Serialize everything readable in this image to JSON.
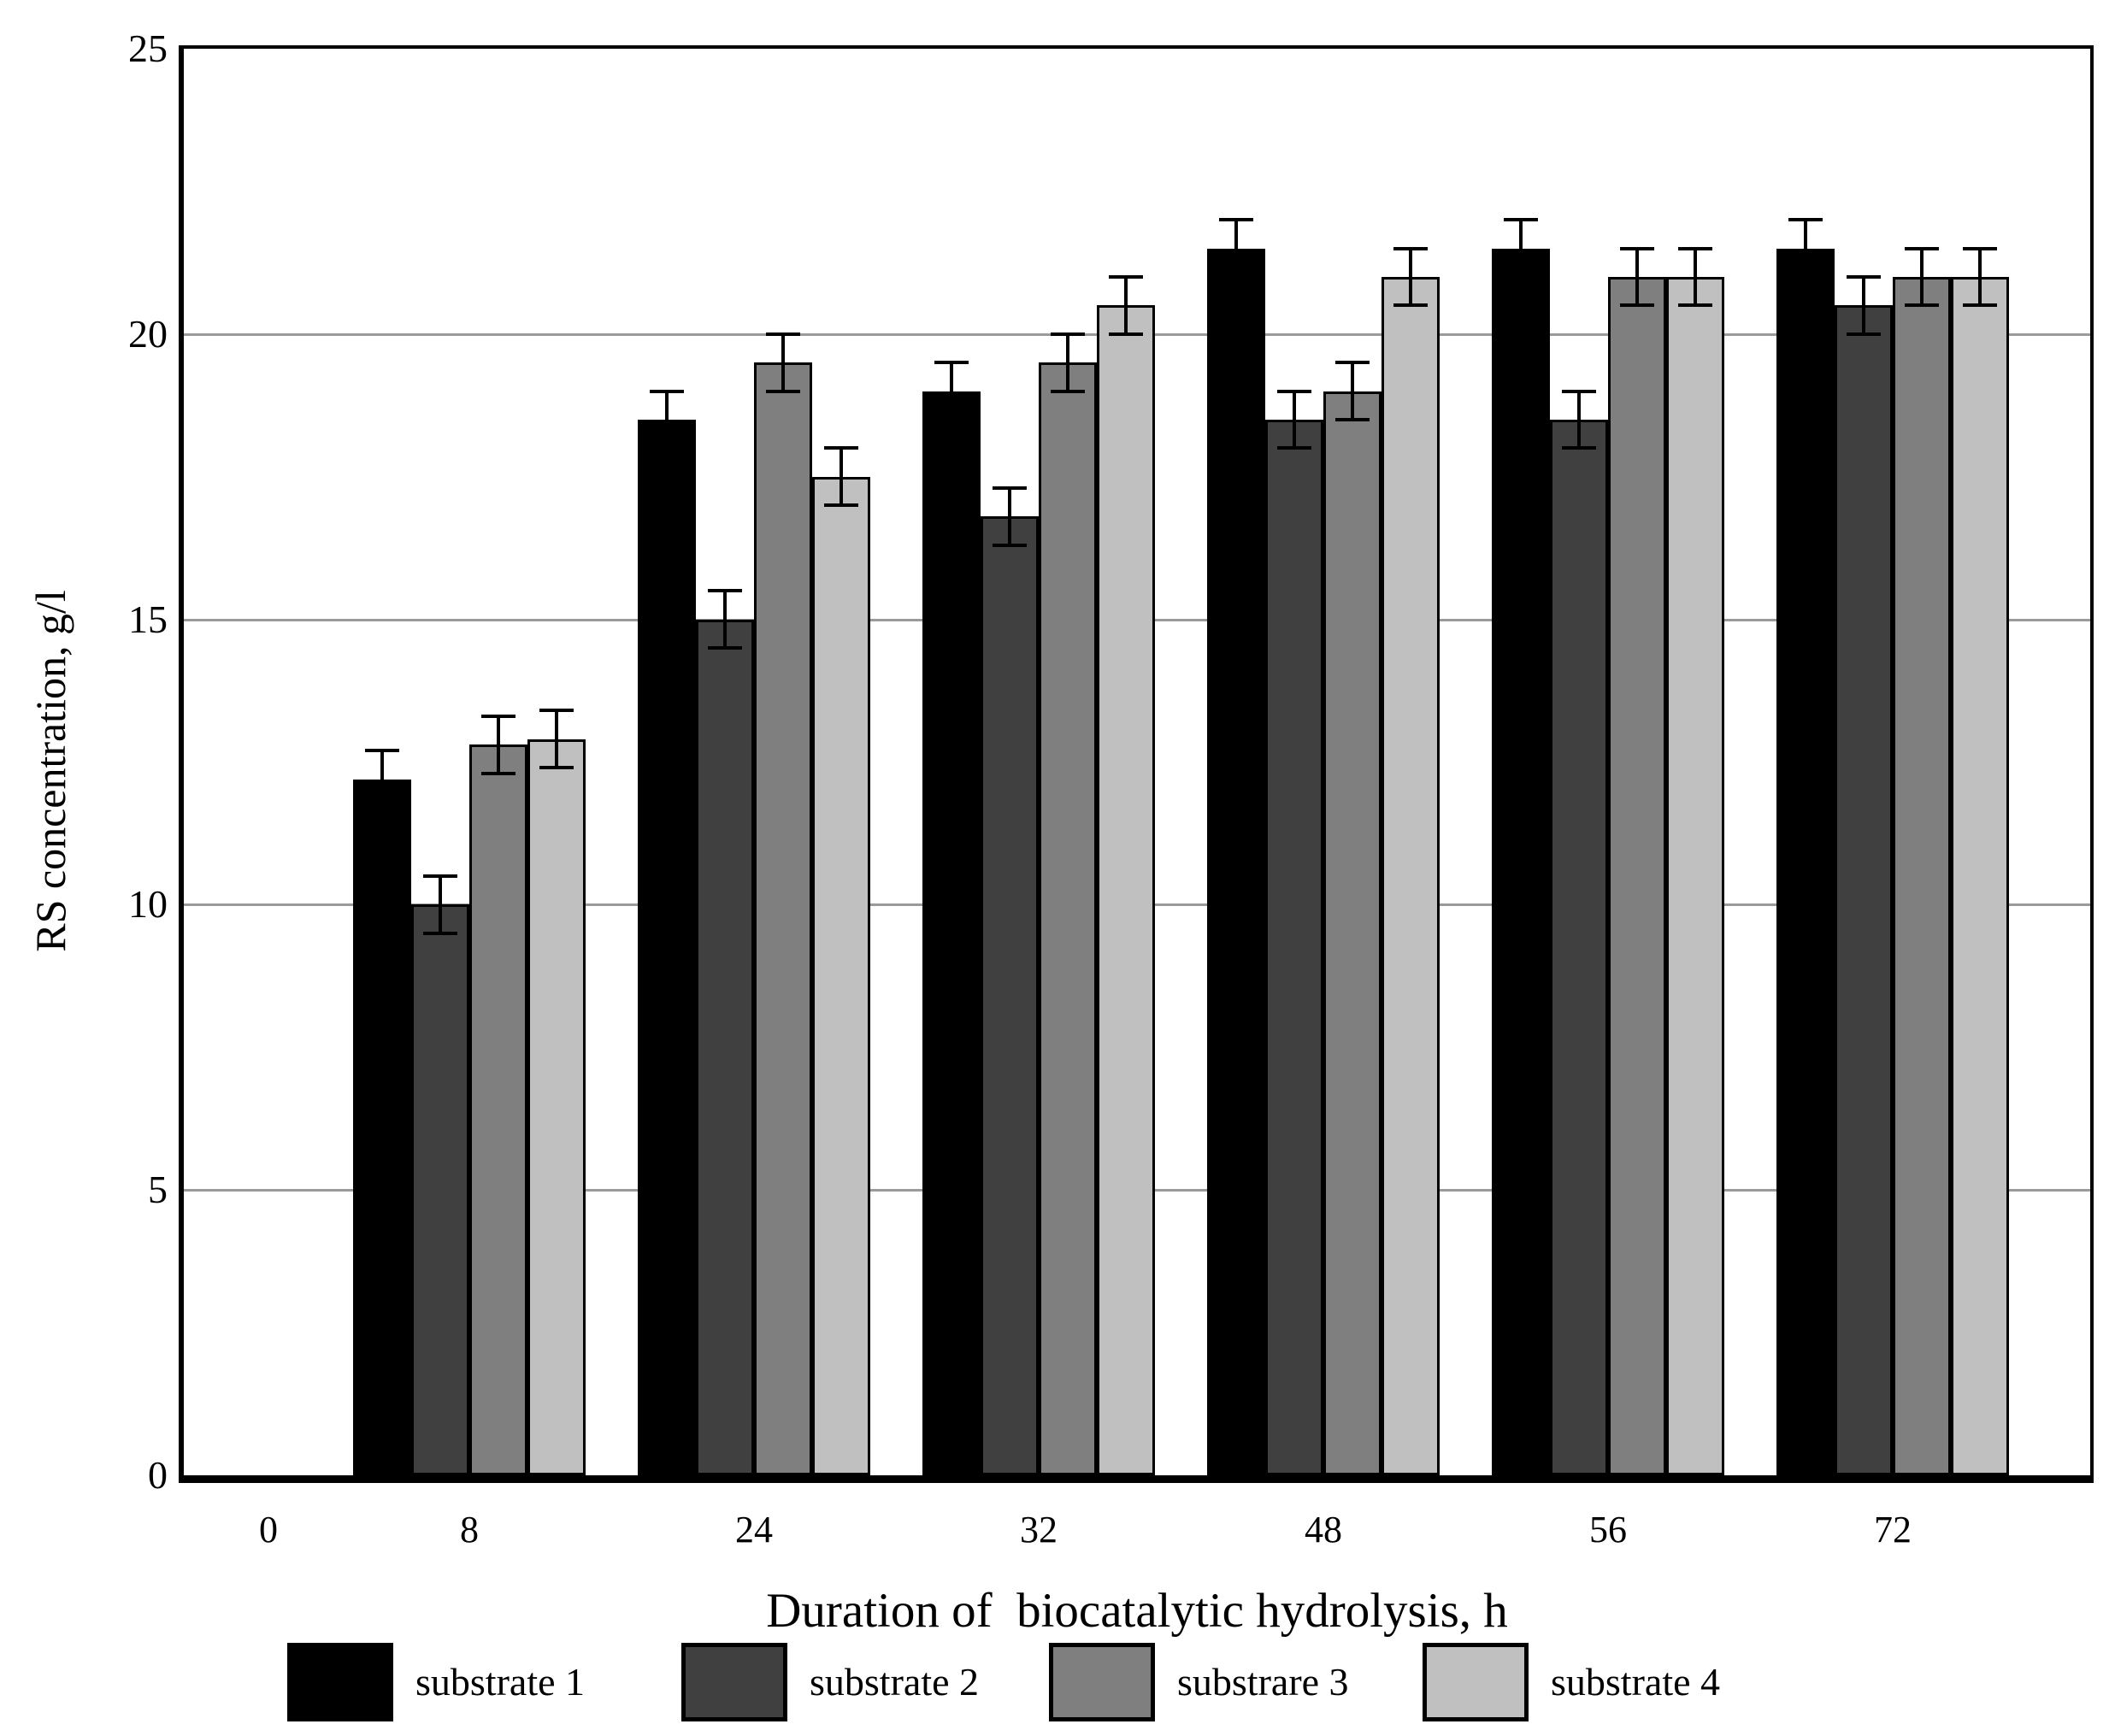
{
  "chart_data": {
    "type": "bar",
    "title": "",
    "xlabel": "Duration of  biocatalytic hydrolysis, h",
    "ylabel": "RS concentration, g/l",
    "categories": [
      "0",
      "8",
      "24",
      "32",
      "48",
      "56",
      "72"
    ],
    "series": [
      {
        "name": "substrate 1",
        "color": "#000000",
        "values": [
          null,
          12.2,
          18.5,
          19.0,
          21.5,
          21.5,
          21.5
        ],
        "errors": [
          null,
          0.5,
          0.5,
          0.5,
          0.5,
          0.5,
          0.5
        ]
      },
      {
        "name": "substrate 2",
        "color": "#404040",
        "values": [
          null,
          10.0,
          15.0,
          16.8,
          18.5,
          18.5,
          20.5
        ],
        "errors": [
          null,
          0.5,
          0.5,
          0.5,
          0.5,
          0.5,
          0.5
        ]
      },
      {
        "name": "substrare 3",
        "color": "#7f7f7f",
        "values": [
          null,
          12.8,
          19.5,
          19.5,
          19.0,
          21.0,
          21.0
        ],
        "errors": [
          null,
          0.5,
          0.5,
          0.5,
          0.5,
          0.5,
          0.5
        ]
      },
      {
        "name": "substrate 4",
        "color": "#c0c0c0",
        "values": [
          null,
          12.9,
          17.5,
          20.5,
          21.0,
          21.0,
          21.0
        ],
        "errors": [
          null,
          0.5,
          0.5,
          0.5,
          0.5,
          0.5,
          0.5
        ]
      }
    ],
    "ylim": [
      0,
      25
    ],
    "ytick_step": 5,
    "yticks": [
      0,
      5,
      10,
      15,
      20,
      25
    ],
    "grid": true,
    "legend_position": "bottom",
    "bar_outline_color": "#000000",
    "gridline_color": "#9a9a9a",
    "error_bar_color": "#000000"
  }
}
